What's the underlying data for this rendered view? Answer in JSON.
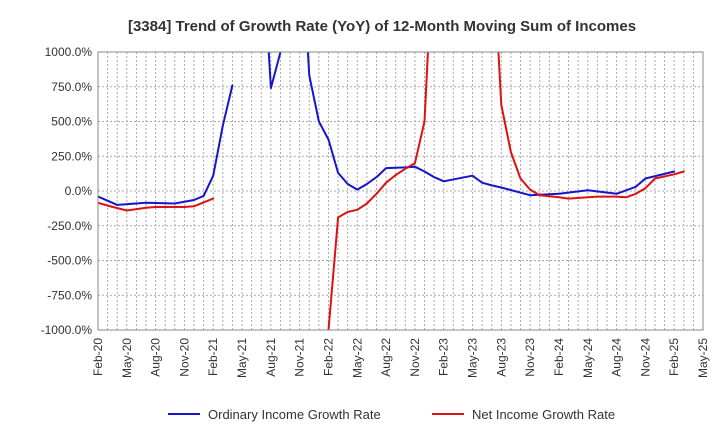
{
  "chart_data": {
    "type": "line",
    "title": "[3384]  Trend of Growth Rate (YoY) of 12-Month Moving Sum of Incomes",
    "xlabel": "",
    "ylabel": "",
    "ylim": [
      -1000,
      1000
    ],
    "yticks": [
      1000,
      750,
      500,
      250,
      0,
      -250,
      -500,
      -750,
      -1000
    ],
    "ytick_labels": [
      "1000.0%",
      "750.0%",
      "500.0%",
      "250.0%",
      "0.0%",
      "-250.0%",
      "-500.0%",
      "-750.0%",
      "-1000.0%"
    ],
    "xtick_labels": [
      "Feb-20",
      "May-20",
      "Aug-20",
      "Nov-20",
      "Feb-21",
      "May-21",
      "Aug-21",
      "Nov-21",
      "Feb-22",
      "May-22",
      "Aug-22",
      "Nov-22",
      "Feb-23",
      "May-23",
      "Aug-23",
      "Nov-23",
      "Feb-24",
      "May-24",
      "Aug-24",
      "Nov-24",
      "Feb-25",
      "May-25"
    ],
    "x_start": "Feb-20",
    "grid": true,
    "legend_position": "bottom",
    "series": [
      {
        "name": "Ordinary Income Growth Rate",
        "color": "#1515cc",
        "points": [
          [
            "Feb-20",
            -40
          ],
          [
            "Mar-20",
            -70
          ],
          [
            "Apr-20",
            -100
          ],
          [
            "Jul-20",
            -85
          ],
          [
            "Oct-20",
            -90
          ],
          [
            "Dec-20",
            -65
          ],
          [
            "Jan-21",
            -35
          ],
          [
            "Feb-21",
            110
          ],
          [
            "Mar-21",
            470
          ],
          [
            "Apr-21",
            760
          ],
          null,
          [
            "Jul-21",
            1900
          ],
          [
            "Aug-21",
            740
          ],
          [
            "Sep-21",
            1000
          ],
          [
            "Oct-21",
            1800
          ],
          null,
          [
            "Nov-21",
            2000
          ],
          [
            "Dec-21",
            830
          ],
          [
            "Jan-22",
            500
          ],
          [
            "Feb-22",
            370
          ],
          [
            "Mar-22",
            130
          ],
          [
            "Apr-22",
            50
          ],
          [
            "May-22",
            10
          ],
          [
            "Jun-22",
            50
          ],
          [
            "Jul-22",
            100
          ],
          [
            "Aug-22",
            165
          ],
          [
            "Oct-22",
            170
          ],
          [
            "Nov-22",
            175
          ],
          [
            "Dec-22",
            140
          ],
          [
            "Jan-23",
            100
          ],
          [
            "Feb-23",
            70
          ],
          [
            "May-23",
            110
          ],
          [
            "Jun-23",
            60
          ],
          [
            "Jul-23",
            40
          ],
          [
            "Aug-23",
            25
          ],
          [
            "Nov-23",
            -30
          ],
          [
            "Feb-24",
            -20
          ],
          [
            "May-24",
            5
          ],
          [
            "Aug-24",
            -20
          ],
          [
            "Oct-24",
            30
          ],
          [
            "Nov-24",
            90
          ],
          [
            "Feb-25",
            140
          ]
        ]
      },
      {
        "name": "Net Income Growth Rate",
        "color": "#dd1111",
        "points": [
          [
            "Feb-20",
            -85
          ],
          [
            "Mar-20",
            -105
          ],
          [
            "May-20",
            -140
          ],
          [
            "Jul-20",
            -120
          ],
          [
            "Aug-20",
            -115
          ],
          [
            "Nov-20",
            -115
          ],
          [
            "Dec-20",
            -110
          ],
          [
            "Feb-21",
            -55
          ],
          null,
          [
            "Feb-22",
            -1000
          ],
          [
            "Mar-22",
            -190
          ],
          [
            "Apr-22",
            -150
          ],
          [
            "May-22",
            -135
          ],
          [
            "Jun-22",
            -90
          ],
          [
            "Jul-22",
            -20
          ],
          [
            "Aug-22",
            60
          ],
          [
            "Sep-22",
            115
          ],
          [
            "Oct-22",
            160
          ],
          [
            "Nov-22",
            200
          ],
          [
            "Dec-22",
            500
          ],
          [
            "Jan-23",
            1900
          ],
          null,
          [
            "Jul-23",
            1900
          ],
          [
            "Aug-23",
            620
          ],
          [
            "Sep-23",
            280
          ],
          [
            "Oct-23",
            90
          ],
          [
            "Nov-23",
            10
          ],
          [
            "Dec-23",
            -30
          ],
          [
            "Feb-24",
            -45
          ],
          [
            "Mar-24",
            -55
          ],
          [
            "May-24",
            -45
          ],
          [
            "Jun-24",
            -40
          ],
          [
            "Aug-24",
            -40
          ],
          [
            "Sep-24",
            -45
          ],
          [
            "Oct-24",
            -20
          ],
          [
            "Nov-24",
            20
          ],
          [
            "Dec-24",
            90
          ],
          [
            "Feb-25",
            120
          ],
          [
            "Mar-25",
            140
          ]
        ]
      }
    ]
  }
}
